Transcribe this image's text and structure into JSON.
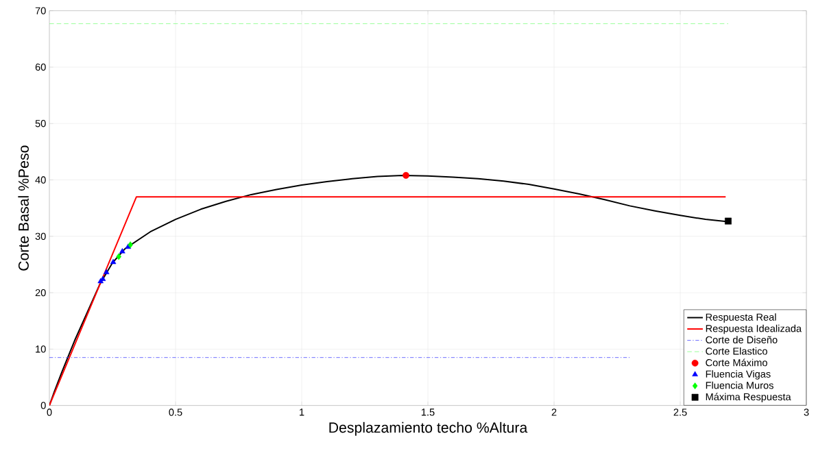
{
  "chart_data": {
    "type": "line",
    "xlabel": "Desplazamiento techo %Altura",
    "ylabel": "Corte Basal %Peso",
    "xlim": [
      0,
      3
    ],
    "ylim": [
      0,
      70
    ],
    "xticks": [
      0,
      0.5,
      1,
      1.5,
      2,
      2.5,
      3
    ],
    "yticks": [
      0,
      10,
      20,
      30,
      40,
      50,
      60,
      70
    ],
    "grid": true,
    "legend": "bottom right",
    "series": [
      {
        "name": "Respuesta Real",
        "color": "#000000",
        "line_style": "solid",
        "marker": "none",
        "x": [
          0,
          0.02,
          0.05,
          0.1,
          0.15,
          0.2,
          0.25,
          0.3,
          0.35,
          0.4,
          0.5,
          0.6,
          0.7,
          0.8,
          0.9,
          1.0,
          1.1,
          1.2,
          1.3,
          1.4,
          1.5,
          1.6,
          1.7,
          1.8,
          1.9,
          2.0,
          2.1,
          2.2,
          2.3,
          2.4,
          2.5,
          2.6,
          2.69
        ],
        "values": [
          0,
          2.5,
          6,
          11.5,
          16.5,
          21.5,
          25.3,
          27.8,
          29.3,
          30.8,
          33,
          34.8,
          36.2,
          37.4,
          38.3,
          39.1,
          39.7,
          40.2,
          40.6,
          40.8,
          40.7,
          40.5,
          40.2,
          39.8,
          39.2,
          38.4,
          37.5,
          36.5,
          35.4,
          34.5,
          33.7,
          33.0,
          32.6
        ]
      },
      {
        "name": "Respuesta Idealizada",
        "color": "#ff0000",
        "line_style": "solid",
        "marker": "none",
        "x": [
          0,
          0.345,
          2.68
        ],
        "values": [
          0,
          37,
          37
        ]
      },
      {
        "name": "Corte de Diseño",
        "color": "#4040ff",
        "line_style": "dashdot",
        "marker": "none",
        "x": [
          0,
          2.3
        ],
        "values": [
          8.5,
          8.5
        ]
      },
      {
        "name": "Corte Elastico",
        "color": "#80ff80",
        "line_style": "dashed",
        "marker": "none",
        "x": [
          0,
          2.69
        ],
        "values": [
          67.7,
          67.7
        ]
      },
      {
        "name": "Corte Máximo",
        "type": "scatter",
        "color": "#ff0000",
        "marker": "circle",
        "x": [
          1.413
        ],
        "values": [
          40.8
        ]
      },
      {
        "name": "Fluencia Vigas",
        "type": "scatter",
        "color": "#0000ff",
        "marker": "triangle",
        "x": [
          0.203,
          0.212,
          0.226,
          0.253,
          0.289,
          0.312
        ],
        "values": [
          22.0,
          22.4,
          23.6,
          25.4,
          27.3,
          28.1
        ]
      },
      {
        "name": "Fluencia Muros",
        "type": "scatter",
        "color": "#00ff00",
        "marker": "diamond",
        "x": [
          0.275,
          0.321
        ],
        "values": [
          26.4,
          28.5
        ]
      },
      {
        "name": "Máxima Respuesta",
        "type": "scatter",
        "color": "#000000",
        "marker": "square",
        "x": [
          2.69
        ],
        "values": [
          32.7
        ]
      }
    ]
  }
}
